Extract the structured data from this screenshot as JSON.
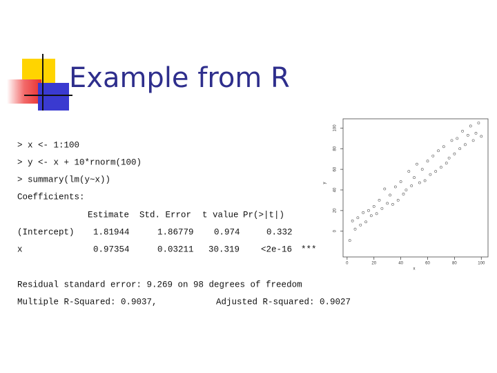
{
  "title": "Example from R",
  "console": {
    "commands": [
      "> x <- 1:100",
      "> y <- x + 10*rnorm(100)",
      "> summary(lm(y~x))"
    ],
    "section": "Coefficients:",
    "table": {
      "header": [
        "Estimate",
        "Std. Error",
        "t value",
        "Pr(>|t|)"
      ],
      "rows": [
        [
          "(Intercept)",
          "1.81944",
          "1.86779",
          "0.974",
          "0.332"
        ],
        [
          "x",
          "0.97354",
          "0.03211",
          "30.319",
          "<2e-16",
          "***"
        ]
      ]
    },
    "residual": "Residual standard error: 9.269 on 98 degrees of freedom",
    "r_squared": [
      "Multiple R-Squared: 0.9037,",
      "Adjusted R-squared: 0.9027"
    ]
  },
  "chart_data": {
    "type": "scatter",
    "x_label": "x",
    "y_label": "y",
    "x": [
      2,
      4,
      6,
      8,
      10,
      12,
      14,
      16,
      18,
      20,
      22,
      24,
      26,
      28,
      30,
      32,
      34,
      36,
      38,
      40,
      42,
      44,
      46,
      48,
      50,
      52,
      54,
      56,
      58,
      60,
      62,
      64,
      66,
      68,
      70,
      72,
      74,
      76,
      78,
      80,
      82,
      84,
      86,
      88,
      90,
      92,
      94,
      96,
      98,
      100
    ],
    "y": [
      -9,
      10,
      2,
      13,
      6,
      18,
      9,
      20,
      15,
      24,
      17,
      30,
      22,
      41,
      27,
      35,
      26,
      43,
      30,
      48,
      36,
      40,
      58,
      44,
      52,
      65,
      47,
      60,
      49,
      68,
      55,
      73,
      58,
      78,
      62,
      82,
      66,
      71,
      88,
      75,
      90,
      80,
      97,
      84,
      93,
      102,
      88,
      95,
      105,
      92
    ],
    "xlim": [
      -3,
      105
    ],
    "ylim": [
      -25,
      109
    ],
    "xticks": [
      0,
      20,
      40,
      60,
      80,
      100
    ],
    "yticks": [
      0,
      20,
      40,
      60,
      80,
      100
    ],
    "color": "#555555"
  }
}
